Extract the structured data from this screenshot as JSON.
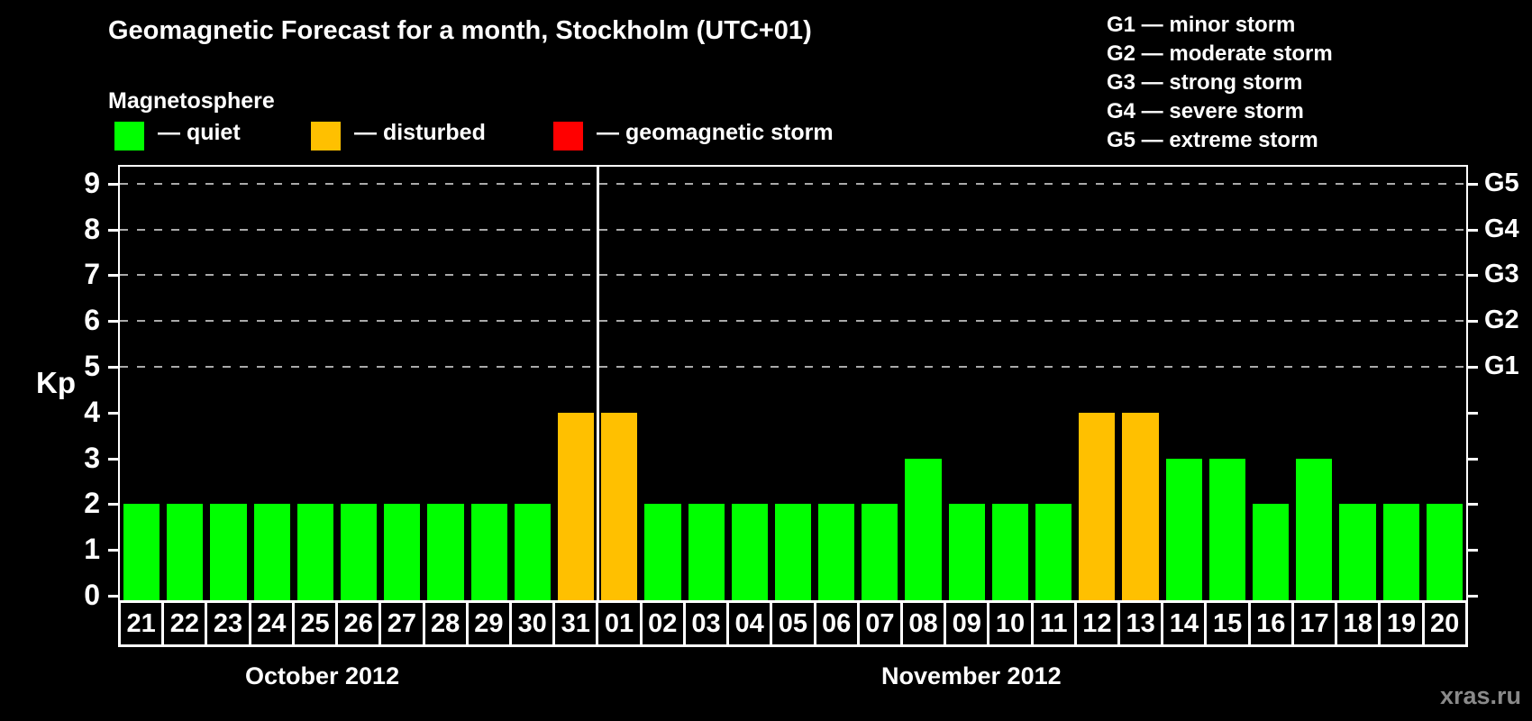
{
  "title": "Geomagnetic Forecast for a month, Stockholm (UTC+01)",
  "subtitle": "Magnetosphere",
  "legend": {
    "items": [
      {
        "name": "quiet",
        "label": "— quiet",
        "color": "#00ff00"
      },
      {
        "name": "disturbed",
        "label": "— disturbed",
        "color": "#ffc000"
      },
      {
        "name": "geomagnetic-storm",
        "label": "— geomagnetic storm",
        "color": "#ff0000"
      }
    ]
  },
  "g_legend": {
    "lines": [
      "G1 — minor storm",
      "G2 — moderate storm",
      "G3 — strong storm",
      "G4 — severe storm",
      "G5 — extreme storm"
    ]
  },
  "watermark": "xras.ru",
  "chart_data": {
    "type": "bar",
    "title": "Geomagnetic Forecast for a month, Stockholm (UTC+01)",
    "ylabel": "Kp",
    "ylim": [
      0,
      9
    ],
    "yticks": [
      0,
      1,
      2,
      3,
      4,
      5,
      6,
      7,
      8,
      9
    ],
    "grid_values": [
      5,
      6,
      7,
      8,
      9
    ],
    "grid_color": "#aaaaaa",
    "right_axis_labels": [
      {
        "label": "G1",
        "value": 5
      },
      {
        "label": "G2",
        "value": 6
      },
      {
        "label": "G3",
        "value": 7
      },
      {
        "label": "G4",
        "value": 8
      },
      {
        "label": "G5",
        "value": 9
      }
    ],
    "months": [
      {
        "label": "October 2012",
        "days": 11
      },
      {
        "label": "November 2012",
        "days": 20
      }
    ],
    "categories": [
      "21",
      "22",
      "23",
      "24",
      "25",
      "26",
      "27",
      "28",
      "29",
      "30",
      "31",
      "01",
      "02",
      "03",
      "04",
      "05",
      "06",
      "07",
      "08",
      "09",
      "10",
      "11",
      "12",
      "13",
      "14",
      "15",
      "16",
      "17",
      "18",
      "19",
      "20"
    ],
    "values": [
      2,
      2,
      2,
      2,
      2,
      2,
      2,
      2,
      2,
      2,
      4,
      4,
      2,
      2,
      2,
      2,
      2,
      2,
      3,
      2,
      2,
      2,
      4,
      4,
      3,
      3,
      2,
      3,
      2,
      2,
      2
    ],
    "statuses": [
      "quiet",
      "quiet",
      "quiet",
      "quiet",
      "quiet",
      "quiet",
      "quiet",
      "quiet",
      "quiet",
      "quiet",
      "disturbed",
      "disturbed",
      "quiet",
      "quiet",
      "quiet",
      "quiet",
      "quiet",
      "quiet",
      "quiet",
      "quiet",
      "quiet",
      "quiet",
      "disturbed",
      "disturbed",
      "quiet",
      "quiet",
      "quiet",
      "quiet",
      "quiet",
      "quiet",
      "quiet"
    ],
    "status_colors": {
      "quiet": "#00ff00",
      "disturbed": "#ffc000",
      "storm": "#ff0000"
    },
    "legend_position": "top-left",
    "grid": "dashed horizontal at G-storm levels only"
  }
}
